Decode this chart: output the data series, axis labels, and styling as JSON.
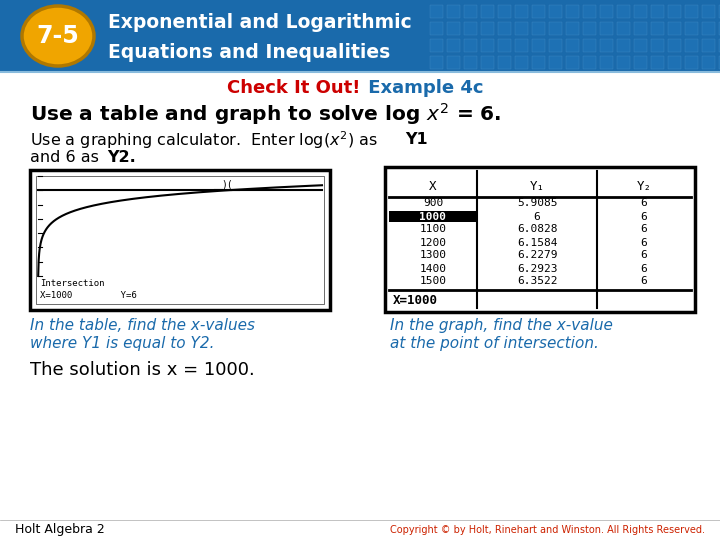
{
  "header_bg_color": "#1a6aab",
  "header_text_color": "#ffffff",
  "badge_color": "#f0a500",
  "badge_text": "7-5",
  "header_line1": "Exponential and Logarithmic",
  "header_line2": "Equations and Inequalities",
  "check_it_out_color": "#cc0000",
  "check_it_out_text": "Check It Out!",
  "example_color": "#1a6aab",
  "example_text": " Example 4c",
  "caption_color": "#1a6aab",
  "bg_color": "#ffffff",
  "body_color": "#000000",
  "footer_left": "Holt Algebra 2",
  "footer_right": "Copyright © by Holt, Rinehart and Winston. All Rights Reserved.",
  "table_rows": [
    [
      "900",
      "5.9085",
      "6"
    ],
    [
      "1000",
      "6",
      "6"
    ],
    [
      "1100",
      "6.0828",
      "6"
    ],
    [
      "1200",
      "6.1584",
      "6"
    ],
    [
      "1300",
      "6.2279",
      "6"
    ],
    [
      "1400",
      "6.2923",
      "6"
    ],
    [
      "1500",
      "6.3522",
      "6"
    ]
  ],
  "highlight_row": 1,
  "table_footer": "X=1000"
}
